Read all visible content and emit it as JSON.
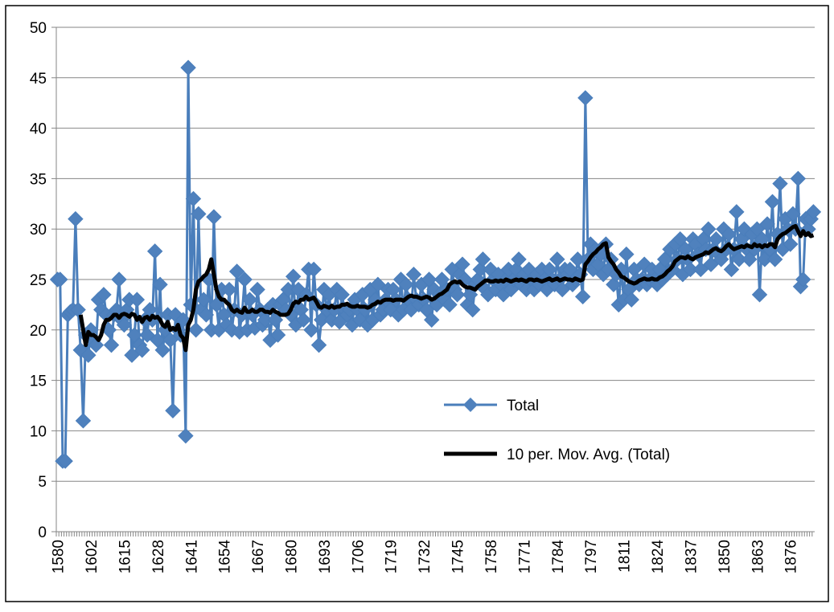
{
  "chart_data": {
    "type": "line",
    "categories": [
      "1580",
      null,
      null,
      null,
      null,
      null,
      null,
      null,
      null,
      null,
      null,
      null,
      null,
      "1602",
      null,
      null,
      null,
      null,
      null,
      null,
      null,
      null,
      null,
      null,
      null,
      null,
      "1615",
      null,
      null,
      null,
      null,
      null,
      null,
      null,
      null,
      null,
      null,
      null,
      null,
      "1628",
      null,
      null,
      null,
      null,
      null,
      null,
      null,
      null,
      null,
      null,
      null,
      null,
      "1641",
      null,
      null,
      null,
      null,
      null,
      null,
      null,
      null,
      null,
      null,
      null,
      null,
      "1654",
      null,
      null,
      null,
      null,
      null,
      null,
      null,
      null,
      null,
      null,
      null,
      null,
      "1667",
      null,
      null,
      null,
      null,
      null,
      null,
      null,
      null,
      null,
      null,
      null,
      null,
      "1680",
      null,
      null,
      null,
      null,
      null,
      null,
      null,
      null,
      null,
      null,
      null,
      null,
      "1693",
      null,
      null,
      null,
      null,
      null,
      null,
      null,
      null,
      null,
      null,
      null,
      null,
      "1706",
      null,
      null,
      null,
      null,
      null,
      null,
      null,
      null,
      null,
      null,
      null,
      null,
      "1719",
      null,
      null,
      null,
      null,
      null,
      null,
      null,
      null,
      null,
      null,
      null,
      null,
      "1732",
      null,
      null,
      null,
      null,
      null,
      null,
      null,
      null,
      null,
      null,
      null,
      null,
      "1745",
      null,
      null,
      null,
      null,
      null,
      null,
      null,
      null,
      null,
      null,
      null,
      null,
      "1758",
      null,
      null,
      null,
      null,
      null,
      null,
      null,
      null,
      null,
      null,
      null,
      null,
      "1771",
      null,
      null,
      null,
      null,
      null,
      null,
      null,
      null,
      null,
      null,
      null,
      null,
      "1784",
      null,
      null,
      null,
      null,
      null,
      null,
      null,
      null,
      null,
      null,
      null,
      null,
      "1797",
      null,
      null,
      null,
      null,
      null,
      null,
      null,
      null,
      null,
      null,
      null,
      null,
      "1811",
      null,
      null,
      null,
      null,
      null,
      null,
      null,
      null,
      null,
      null,
      null,
      null,
      "1824",
      null,
      null,
      null,
      null,
      null,
      null,
      null,
      null,
      null,
      null,
      null,
      null,
      "1837",
      null,
      null,
      null,
      null,
      null,
      null,
      null,
      null,
      null,
      null,
      null,
      null,
      "1850",
      null,
      null,
      null,
      null,
      null,
      null,
      null,
      null,
      null,
      null,
      null,
      null,
      "1863",
      null,
      null,
      null,
      null,
      null,
      null,
      null,
      null,
      null,
      null,
      null,
      null,
      "1876",
      null,
      null,
      null,
      null,
      null,
      null,
      null,
      null,
      null
    ],
    "series": [
      {
        "name": "Total",
        "color": "#4a7ebb",
        "marker": "diamond",
        "values": [
          25,
          25,
          7,
          7,
          21.5,
          21.8,
          22,
          31,
          22,
          18,
          11,
          19.5,
          17.5,
          20,
          19,
          18.5,
          23,
          22,
          23.5,
          21.5,
          20,
          18.5,
          21.5,
          22,
          25,
          21,
          20.5,
          22,
          23,
          17.5,
          19.5,
          23,
          18.5,
          18,
          21,
          19.5,
          22,
          21,
          27.8,
          19,
          24.5,
          18,
          20,
          21.5,
          19,
          12,
          21.5,
          20,
          19.5,
          21,
          9.5,
          46,
          22.5,
          33,
          20,
          31.5,
          22,
          23,
          21.5,
          25,
          20,
          31.2,
          22.5,
          20,
          24,
          21.5,
          20.5,
          24,
          20,
          22,
          25.8,
          19.8,
          21.5,
          25,
          20,
          23,
          21.5,
          20.2,
          24,
          22,
          20.5,
          21,
          22,
          19,
          22.5,
          21,
          19.5,
          22.5,
          23,
          22,
          24,
          21.5,
          25.3,
          20.5,
          24,
          22,
          21,
          23.5,
          26,
          20,
          26,
          22.5,
          18.5,
          21,
          24,
          22,
          23.5,
          21,
          22,
          24,
          20.8,
          23.5,
          22,
          21.5,
          22,
          20.5,
          23,
          22,
          21,
          23.5,
          22,
          20.5,
          24,
          21,
          23,
          24.5,
          21.5,
          22,
          23,
          24,
          22,
          24,
          23,
          21.5,
          25,
          22,
          24.5,
          23,
          22,
          25.5,
          23,
          22.5,
          24.5,
          23,
          22,
          25,
          21,
          24,
          22.5,
          23.5,
          25,
          23,
          24,
          22.5,
          26,
          24,
          23.5,
          25.5,
          26.5,
          25,
          22.5,
          23.5,
          22,
          24.5,
          25,
          26,
          27,
          24,
          23.5,
          26,
          25,
          24,
          25.5,
          24.5,
          23.5,
          25,
          26,
          24,
          25,
          26,
          27,
          24.5,
          25.5,
          24,
          26,
          25,
          24,
          25.5,
          24.5,
          26,
          25,
          24,
          26,
          25,
          24.5,
          27,
          25,
          24,
          26,
          25.5,
          26,
          24.5,
          25,
          27,
          25.5,
          23.3,
          43,
          27,
          28.5,
          26,
          28,
          26.5,
          27.5,
          25.5,
          28.5,
          26,
          27,
          24.5,
          25.5,
          22.5,
          26,
          23,
          27.5,
          24,
          23,
          26,
          25,
          24.5,
          25,
          26.5,
          24.5,
          25,
          26,
          25,
          24.5,
          26,
          25,
          27,
          25.5,
          28,
          26,
          28.5,
          27,
          29,
          25.5,
          28,
          27,
          26,
          29,
          28.5,
          27.5,
          26,
          29,
          28,
          30,
          26.5,
          28,
          29,
          27.5,
          27,
          30,
          28,
          29.5,
          26,
          28,
          31.7,
          27,
          29,
          30,
          28,
          27,
          29.5,
          28,
          30,
          23.5,
          29,
          27,
          30.5,
          28,
          32.7,
          27,
          29.5,
          34.5,
          28,
          31,
          30,
          28.5,
          31.5,
          30,
          35,
          24.3,
          25,
          31,
          30,
          31,
          31.7
        ]
      },
      {
        "name": "10 per. Mov. Avg. (Total)",
        "color": "#000000",
        "marker": "none",
        "values": [
          null,
          null,
          null,
          null,
          null,
          null,
          null,
          null,
          null,
          21.5,
          20,
          18.5,
          19.8,
          19.5,
          19.5,
          19.3,
          19,
          19.5,
          20.5,
          21,
          21,
          21.2,
          21.5,
          21.5,
          21.2,
          21.5,
          21.6,
          21.5,
          21.3,
          21.6,
          21.5,
          21,
          21.3,
          20.8,
          21.2,
          21.3,
          21,
          21.4,
          21.2,
          21.3,
          21,
          20.5,
          20.3,
          20.8,
          20,
          20.2,
          20,
          20.5,
          19.5,
          19.2,
          18,
          20.5,
          21,
          22,
          24,
          24.8,
          25,
          25.3,
          25.5,
          26,
          27,
          25.5,
          24,
          23.3,
          23,
          23,
          22.7,
          22.5,
          22,
          21.8,
          22,
          21.8,
          21.7,
          22.2,
          21.8,
          21.8,
          22,
          21.8,
          21.8,
          22,
          22,
          21.8,
          21.8,
          21.7,
          22,
          21.8,
          21.7,
          21.5,
          21.5,
          21.5,
          21.6,
          22,
          22.6,
          22.8,
          22.7,
          23,
          23,
          23.3,
          23,
          23.1,
          23.2,
          22.8,
          22.3,
          22.2,
          22.4,
          22.3,
          22.2,
          22.4,
          22.2,
          22.3,
          22.3,
          22.5,
          22.5,
          22.6,
          22.4,
          22.3,
          22.3,
          22.4,
          22.3,
          22.3,
          22.3,
          22.2,
          22.3,
          22.5,
          22.6,
          22.8,
          22.7,
          22.9,
          23,
          23,
          23,
          22.9,
          23,
          23,
          23,
          22.9,
          23.1,
          23.3,
          23.4,
          23.3,
          23.3,
          23.2,
          23.1,
          23.2,
          23.3,
          23.2,
          23,
          23.1,
          23.3,
          23.5,
          23.6,
          23.8,
          24,
          24.5,
          24.7,
          24.8,
          24.7,
          24.8,
          24.5,
          24.3,
          24.2,
          24.2,
          24.1,
          24,
          24.3,
          24.5,
          24.7,
          24.9,
          24.9,
          24.8,
          24.8,
          24.9,
          24.8,
          24.9,
          24.8,
          25,
          24.9,
          24.8,
          24.9,
          25,
          24.9,
          25,
          24.9,
          24.8,
          25,
          25,
          24.9,
          25,
          24.9,
          24.8,
          24.9,
          25,
          25.1,
          24.9,
          25,
          25.1,
          24.9,
          25,
          25.1,
          25,
          25,
          24.9,
          25.1,
          25,
          24.9,
          25,
          26.5,
          26.8,
          27.2,
          27.5,
          27.7,
          28,
          28.2,
          28.5,
          28.6,
          27.2,
          26.8,
          26.5,
          26,
          25.7,
          25.3,
          25.2,
          25,
          24.8,
          24.7,
          24.6,
          24.7,
          24.9,
          25,
          25.1,
          25,
          25,
          25.1,
          25,
          25,
          25.2,
          25.3,
          25.5,
          25.8,
          26,
          26.3,
          26.8,
          27,
          27.2,
          27.2,
          27.1,
          27.3,
          27.1,
          27,
          27.2,
          27.3,
          27.4,
          27.5,
          27.7,
          27.6,
          27.8,
          28,
          28.1,
          27.9,
          27.8,
          28,
          28.3,
          28.5,
          28.2,
          28,
          28.1,
          28.2,
          28.3,
          28.2,
          28.4,
          28.3,
          28.2,
          28.5,
          28.3,
          28.4,
          28.2,
          28.4,
          28.3,
          28.5,
          28.5,
          28.2,
          29,
          29.3,
          29.5,
          29.6,
          29.8,
          30,
          30.2,
          30.3,
          29.8,
          29.3,
          29.8,
          29.4,
          29.6,
          29.3,
          29.4
        ]
      }
    ],
    "ylim": [
      0,
      50
    ],
    "yticks": [
      0,
      5,
      10,
      15,
      20,
      25,
      30,
      35,
      40,
      45,
      50
    ],
    "grid": true,
    "legend": "inside"
  }
}
